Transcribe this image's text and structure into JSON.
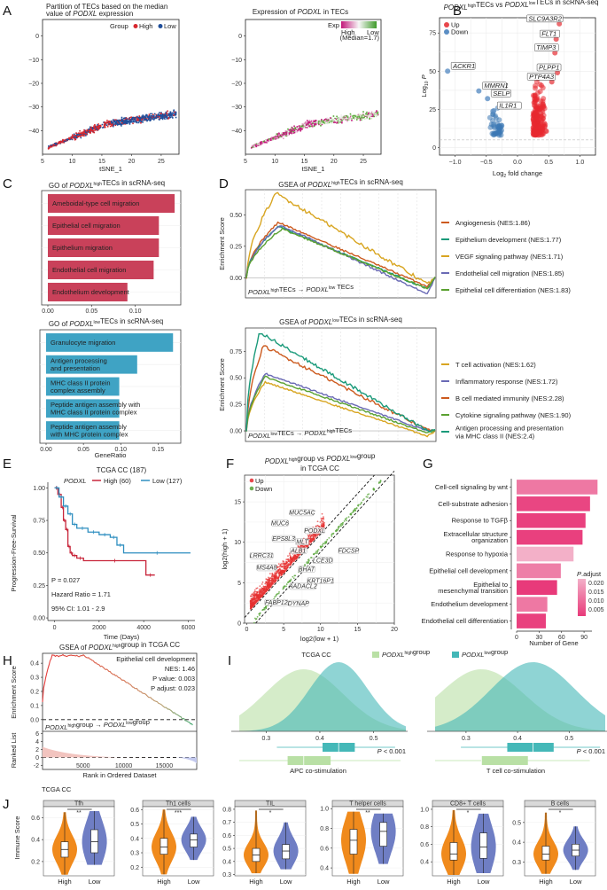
{
  "panel_letters": [
    "A",
    "B",
    "C",
    "D",
    "E",
    "F",
    "G",
    "H",
    "I",
    "J"
  ],
  "chart_data": [
    {
      "id": "A1",
      "type": "scatter",
      "title": [
        "Partition of TECs based on the median",
        "value of PODXL expression"
      ],
      "xlabel": "tSNE_1",
      "ylabel": "",
      "xlim": [
        5,
        28
      ],
      "ylim": [
        -50,
        7
      ],
      "xticks": [
        5,
        10,
        15,
        20,
        25
      ],
      "yticks": [
        0,
        -10,
        -20,
        -30,
        -40
      ],
      "legend": {
        "title": "Group",
        "entries": [
          {
            "label": "High",
            "color": "#d7282f"
          },
          {
            "label": "Low",
            "color": "#1f4e9a"
          }
        ],
        "position": "top-right"
      },
      "cloud": {
        "from": [
          6,
          -47
        ],
        "mid": [
          16,
          -37
        ],
        "to": [
          27.5,
          -33
        ]
      }
    },
    {
      "id": "A2",
      "type": "scatter",
      "title": [
        "Expression of PODXL in TECs"
      ],
      "xlabel": "tSNE_1",
      "xlim": [
        5,
        28
      ],
      "ylim": [
        -50,
        7
      ],
      "xticks": [
        5,
        10,
        15,
        20,
        25
      ],
      "yticks": [
        0,
        -10,
        -20,
        -30,
        -40
      ],
      "legend": {
        "title": "Exp",
        "low_label": "Low",
        "high_label": "High",
        "note": "(Median=1.7)",
        "colors": [
          "#c2187a",
          "#f7f7f7",
          "#3f9a2a"
        ],
        "position": "top-right"
      }
    },
    {
      "id": "B",
      "type": "scatter",
      "title": "PODXLhighTECs vs PODXLlowTECs in scRNA-seq",
      "xlabel": "Log2 fold change",
      "ylabel": "Log10 P",
      "xlim": [
        -1.25,
        1.25
      ],
      "ylim": [
        -5,
        85
      ],
      "xticks": [
        -1.0,
        -0.5,
        0.0,
        0.5,
        1.0
      ],
      "yticks": [
        0,
        25,
        50,
        75
      ],
      "legend": [
        {
          "label": "Up",
          "color": "#e8474c"
        },
        {
          "label": "Down",
          "color": "#5b8ec4"
        }
      ],
      "labeled_genes": [
        {
          "gene": "SLC9A3R2",
          "x": 0.67,
          "y": 81
        },
        {
          "gene": "FLT1",
          "x": 0.62,
          "y": 71
        },
        {
          "gene": "TIMP3",
          "x": 0.6,
          "y": 62
        },
        {
          "gene": "PLPP1",
          "x": 0.64,
          "y": 49
        },
        {
          "gene": "PTP4A3",
          "x": 0.55,
          "y": 43
        },
        {
          "gene": "ACKR1",
          "x": -1.12,
          "y": 50
        },
        {
          "gene": "MMRN1",
          "x": -0.62,
          "y": 37
        },
        {
          "gene": "SELP",
          "x": -0.48,
          "y": 32
        },
        {
          "gene": "IL1R1",
          "x": -0.38,
          "y": 24
        }
      ],
      "threshold_y": 5
    },
    {
      "id": "C1",
      "type": "bar",
      "title": "GO of PODXLhighTECs in scRNA-seq",
      "categories": [
        "Ameboidal-type cell migration",
        "Epithelial cell migration",
        "Epithelium migration",
        "Endothelial cell migration",
        "Endothelium development"
      ],
      "values": [
        0.145,
        0.127,
        0.127,
        0.121,
        0.091
      ],
      "xlim": [
        0,
        0.15
      ],
      "xticks": [
        0.0,
        0.05,
        0.1
      ],
      "xticklabels": [
        "0.00",
        "0.05",
        "0.10"
      ],
      "color": "#c9415a"
    },
    {
      "id": "C2",
      "type": "bar",
      "title": "GO of PODXLlowTECs in scRNA-seq",
      "categories": [
        "Granulocyte migration",
        "Antigen processing\nand presentation",
        "MHC class II protein\ncomplex assembly",
        "Peptide antigen assembly with\nMHC class II protein complex",
        "Peptide antigen assembly\nwith MHC protein complex"
      ],
      "values": [
        0.17,
        0.122,
        0.098,
        0.098,
        0.098
      ],
      "xlim": [
        0,
        0.178
      ],
      "xticks": [
        0,
        0.05,
        0.1,
        0.15
      ],
      "xticklabels": [
        "0.00",
        "0.05",
        "0.10",
        "0.15"
      ],
      "xlabel": "GeneRatio",
      "color": "#3fa3c4"
    },
    {
      "id": "D1",
      "type": "line",
      "title": "GSEA of PODXLhighTECs in scRNA-seq",
      "ylabel": "Enrichment Score",
      "ylim": [
        -0.16,
        0.7
      ],
      "yticks": [
        0.0,
        0.25,
        0.5
      ],
      "yticklabels": [
        "0.00",
        "0.25",
        "0.50"
      ],
      "axis_note": "PODXLhighTECs -------> PODXLlow TECs",
      "series": [
        {
          "name": "Angiogenesis (NES:1.86)",
          "color": "#cc5a1e",
          "peak": 0.44,
          "peak_at": 0.17,
          "end_min": -0.07
        },
        {
          "name": "Epithelium development (NES:1.77)",
          "color": "#1a9a7a",
          "peak": 0.41,
          "peak_at": 0.17,
          "end_min": -0.09
        },
        {
          "name": "VEGF signaling pathway (NES:1.71)",
          "color": "#d8a521",
          "peak": 0.67,
          "peak_at": 0.16,
          "end_min": -0.05
        },
        {
          "name": "Endothelial cell migration (NES:1.85)",
          "color": "#6a6ab5",
          "peak": 0.42,
          "peak_at": 0.18,
          "end_min": -0.13
        },
        {
          "name": "Epithelial cell differentiation (NES:1.83)",
          "color": "#5aa131",
          "peak": 0.39,
          "peak_at": 0.19,
          "end_min": -0.09
        }
      ]
    },
    {
      "id": "D2",
      "type": "line",
      "title": "GSEA of PODXLlowTECs in scRNA-seq",
      "ylabel": "Enrichment Score",
      "ylim": [
        -0.1,
        0.97
      ],
      "yticks": [
        0.0,
        0.25,
        0.5,
        0.75
      ],
      "yticklabels": [
        "0.00",
        "0.25",
        "0.50",
        "0.75"
      ],
      "axis_note": "PODXLlowTECs ------>PODXLhighTECs",
      "series": [
        {
          "name": "T cell activation (NES:1.62)",
          "color": "#d8a521",
          "peak": 0.46,
          "peak_at": 0.1,
          "end_min": -0.05
        },
        {
          "name": "Inflammatory response (NES:1.72)",
          "color": "#6a6ab5",
          "peak": 0.54,
          "peak_at": 0.1,
          "end_min": 0.0
        },
        {
          "name": "B cell mediated immunity (NES:2.28)",
          "color": "#cc5a1e",
          "peak": 0.8,
          "peak_at": 0.09,
          "end_min": 0.01
        },
        {
          "name": "Cytokine signaling pathway (NES:1.90)",
          "color": "#5aa131",
          "peak": 0.51,
          "peak_at": 0.1,
          "end_min": -0.02
        },
        {
          "name": "Antigen processing and presentation\nvia MHC class II (NES:2.4)",
          "color": "#1a9a7a",
          "peak": 0.93,
          "peak_at": 0.07,
          "end_min": 0.0
        }
      ]
    },
    {
      "id": "E",
      "type": "line",
      "title": "TCGA  CC (187)",
      "xlabel": "Time (Days)",
      "ylabel": "Progression-Free-Survival",
      "xlim": [
        -300,
        6300
      ],
      "ylim": [
        -0.02,
        1.03
      ],
      "xticks": [
        0,
        2000,
        4000,
        6000
      ],
      "yticks": [
        0.0,
        0.25,
        0.5,
        0.75,
        1.0
      ],
      "yticklabels": [
        "0.00",
        "0.25",
        "0.50",
        "0.75",
        "1.00"
      ],
      "legend_title": "PODXL",
      "series": [
        {
          "name": "High (60)",
          "color": "#c8263b",
          "x": [
            0,
            150,
            300,
            400,
            500,
            600,
            700,
            800,
            1000,
            1300,
            4100,
            4500
          ],
          "y": [
            1.0,
            0.95,
            0.85,
            0.75,
            0.68,
            0.55,
            0.5,
            0.48,
            0.46,
            0.44,
            0.33,
            0.33
          ]
        },
        {
          "name": "Low (127)",
          "color": "#2f8fc0",
          "x": [
            0,
            200,
            400,
            600,
            800,
            1000,
            1500,
            2000,
            2500,
            2800,
            3100,
            6100
          ],
          "y": [
            1.0,
            0.93,
            0.86,
            0.8,
            0.72,
            0.69,
            0.66,
            0.64,
            0.62,
            0.56,
            0.5,
            0.5
          ]
        }
      ],
      "annotations": [
        "P = 0.027",
        "Hazard Ratio = 1.71",
        "95% CI: 1.01 - 2.9"
      ]
    },
    {
      "id": "F",
      "type": "scatter",
      "title": [
        "PODXLhighgroup vs PODXLlowgroup",
        "in TCGA CC"
      ],
      "xlabel": "log2(low + 1)",
      "ylabel": "log2(high + 1)",
      "xlim": [
        -0.3,
        20
      ],
      "ylim": [
        0,
        18.3
      ],
      "xticks": [
        0,
        5,
        10,
        15,
        20
      ],
      "yticks": [
        0,
        5,
        10,
        15
      ],
      "legend": [
        {
          "label": "Up",
          "color": "#e8474c"
        },
        {
          "label": "Down",
          "color": "#6fae52"
        }
      ],
      "labeled_genes": [
        {
          "gene": "MUC5AC",
          "x": 7.5,
          "y": 13.6
        },
        {
          "gene": "MUC6",
          "x": 4.5,
          "y": 12.3
        },
        {
          "gene": "PODXL",
          "x": 9.2,
          "y": 11.4
        },
        {
          "gene": "EPS8L3",
          "x": 5.0,
          "y": 10.4
        },
        {
          "gene": "MLT",
          "x": 7.5,
          "y": 10.0
        },
        {
          "gene": "FDCSP",
          "x": 13.8,
          "y": 8.9
        },
        {
          "gene": "LRRC31",
          "x": 2.0,
          "y": 8.3
        },
        {
          "gene": "ALB1",
          "x": 7.0,
          "y": 8.9
        },
        {
          "gene": "LCE3D",
          "x": 10.3,
          "y": 7.7
        },
        {
          "gene": "MS4A8",
          "x": 2.7,
          "y": 6.8
        },
        {
          "gene": "BHAT",
          "x": 8.1,
          "y": 6.6
        },
        {
          "gene": "KRT16P1",
          "x": 10.0,
          "y": 5.2
        },
        {
          "gene": "AADACL2",
          "x": 7.6,
          "y": 4.5
        },
        {
          "gene": "FABP12",
          "x": 4.0,
          "y": 2.5
        },
        {
          "gene": "DYNAP",
          "x": 7.0,
          "y": 2.4
        }
      ]
    },
    {
      "id": "G",
      "type": "bar",
      "categories": [
        "Cell-cell signaling by wnt",
        "Cell-substrate adhesion",
        "Response to TGFβ",
        "Extracellular structure\norganization",
        "Response to hypoxia",
        "Epithelial cell development",
        "Epithelial to\nmesenchymal transition",
        "Endothelium development",
        "Endothelial cell differentiation"
      ],
      "values": [
        108,
        98,
        92,
        88,
        76,
        59,
        54,
        41,
        39
      ],
      "padjust": [
        0.012,
        0.004,
        0.003,
        0.003,
        0.021,
        0.013,
        0.002,
        0.012,
        0.003
      ],
      "xlabel": "Number of Gene",
      "xlim": [
        0,
        110
      ],
      "xticks": [
        0,
        30,
        60,
        90
      ],
      "legend": {
        "title": "P.adjust",
        "ticks": [
          "0.020",
          "0.015",
          "0.010",
          "0.005"
        ],
        "colors": [
          "#f3b0c8",
          "#e83a7a"
        ]
      }
    },
    {
      "id": "H",
      "type": "line",
      "title": "GSEA  of PODXLhighgroup in TCGA CC",
      "xlabel": "Rank in Ordered Dataset",
      "ylabel_top": "Enrichment Score",
      "ylabel_bottom": "Ranked List",
      "xlim": [
        0,
        19000
      ],
      "xticks": [
        5000,
        10000,
        15000
      ],
      "ylim_top": [
        -0.02,
        0.47
      ],
      "yticks_top": [
        0.0,
        0.1,
        0.2,
        0.3,
        0.4
      ],
      "ylim_bottom": [
        -3,
        6.5
      ],
      "yticks_bottom": [
        -2,
        0,
        2,
        4,
        6
      ],
      "annotations": [
        "Epithelial cell development",
        "NES: 1.46",
        "P value: 0.003",
        "P adjust: 0.023"
      ],
      "axis_note": "PODXLhighgroup ---------> PODXLlowgroup",
      "es_peak": 0.46
    },
    {
      "id": "I",
      "type": "area",
      "title": "TCGA CC",
      "legend": [
        {
          "label": "PODXLhighgroup",
          "color": "#b9e0a5"
        },
        {
          "label": "PODXLlowgroup",
          "color": "#44b8b8"
        }
      ],
      "panels": [
        {
          "name": "APC co-stimulation",
          "xlim": [
            0.25,
            0.56
          ],
          "xticks": [
            0.3,
            0.4,
            0.5
          ],
          "pvalue": "P < 0.001",
          "high": {
            "median": 0.37,
            "q1": 0.34,
            "q3": 0.42,
            "min": 0.25,
            "max": 0.55
          },
          "low": {
            "median": 0.435,
            "q1": 0.405,
            "q3": 0.465,
            "min": 0.32,
            "max": 0.54
          }
        },
        {
          "name": "T cell co-stimulation",
          "xlim": [
            0.24,
            0.57
          ],
          "xticks": [
            0.3,
            0.4,
            0.5
          ],
          "pvalue": "P < 0.001",
          "high": {
            "median": 0.33,
            "q1": 0.33,
            "q3": 0.42,
            "min": 0.24,
            "max": 0.54
          },
          "low": {
            "median": 0.43,
            "q1": 0.38,
            "q3": 0.47,
            "min": 0.29,
            "max": 0.56
          }
        }
      ]
    },
    {
      "id": "J",
      "type": "box",
      "title": "TCGA  CC",
      "ylabel": "Immune Score",
      "categories": [
        "High",
        "Low"
      ],
      "colors": {
        "High": "#f08a1c",
        "Low": "#6f7ec4"
      },
      "panels": [
        {
          "name": "Tfh",
          "sig": "**",
          "ylim": [
            0.07,
            0.7
          ],
          "yticks": [
            0.2,
            0.4,
            0.6
          ],
          "High": {
            "min": 0.08,
            "q1": 0.24,
            "median": 0.31,
            "q3": 0.38,
            "max": 0.65
          },
          "Low": {
            "min": 0.17,
            "q1": 0.28,
            "median": 0.38,
            "q3": 0.49,
            "max": 0.66
          }
        },
        {
          "name": "Th1 cells",
          "sig": "***",
          "ylim": [
            0.14,
            0.62
          ],
          "yticks": [
            0.2,
            0.3,
            0.4,
            0.5,
            0.6
          ],
          "High": {
            "min": 0.15,
            "q1": 0.29,
            "median": 0.34,
            "q3": 0.4,
            "max": 0.6
          },
          "Low": {
            "min": 0.25,
            "q1": 0.34,
            "median": 0.39,
            "q3": 0.43,
            "max": 0.55
          }
        },
        {
          "name": "TIL",
          "sig": "*",
          "ylim": [
            0.29,
            0.82
          ],
          "yticks": [
            0.3,
            0.4,
            0.5,
            0.6,
            0.7,
            0.8
          ],
          "High": {
            "min": 0.31,
            "q1": 0.4,
            "median": 0.45,
            "q3": 0.5,
            "max": 0.79
          },
          "Low": {
            "min": 0.34,
            "q1": 0.42,
            "median": 0.48,
            "q3": 0.53,
            "max": 0.7
          }
        },
        {
          "name": "T helper cells",
          "sig": "**",
          "ylim": [
            0.32,
            1.02
          ],
          "yticks": [
            0.4,
            0.6,
            0.8,
            1.0
          ],
          "High": {
            "min": 0.34,
            "q1": 0.54,
            "median": 0.68,
            "q3": 0.79,
            "max": 0.97
          },
          "Low": {
            "min": 0.44,
            "q1": 0.62,
            "median": 0.77,
            "q3": 0.86,
            "max": 0.95
          }
        },
        {
          "name": "CD8+ T cells",
          "sig": "*",
          "ylim": [
            0.24,
            1.03
          ],
          "yticks": [
            0.4,
            0.6,
            0.8,
            1.0
          ],
          "High": {
            "min": 0.25,
            "q1": 0.42,
            "median": 0.49,
            "q3": 0.62,
            "max": 0.99
          },
          "Low": {
            "min": 0.27,
            "q1": 0.44,
            "median": 0.57,
            "q3": 0.73,
            "max": 0.95
          }
        },
        {
          "name": "B cells",
          "sig": "*",
          "ylim": [
            0.23,
            0.58
          ],
          "yticks": [
            0.3,
            0.4,
            0.5
          ],
          "High": {
            "min": 0.24,
            "q1": 0.31,
            "median": 0.34,
            "q3": 0.38,
            "max": 0.55
          },
          "Low": {
            "min": 0.26,
            "q1": 0.33,
            "median": 0.36,
            "q3": 0.39,
            "max": 0.48
          }
        }
      ]
    }
  ]
}
